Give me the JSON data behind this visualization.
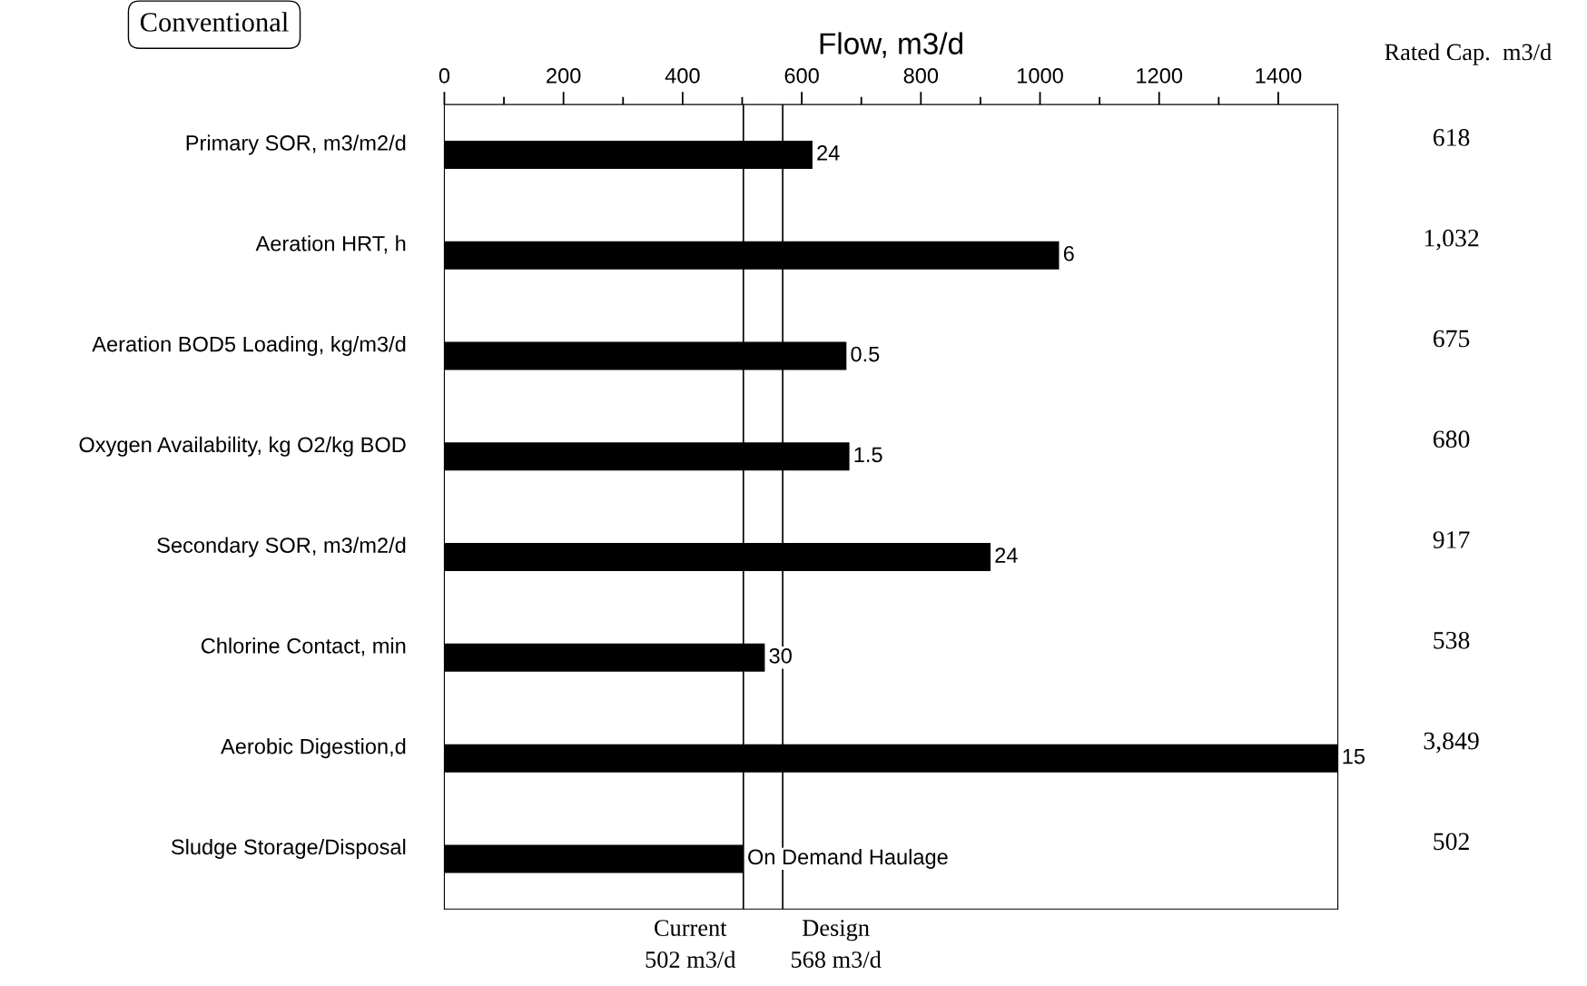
{
  "chart_data": {
    "type": "bar",
    "orientation": "horizontal",
    "title": "Flow, m3/d",
    "categories": [
      "Primary SOR, m3/m2/d",
      "Aeration HRT, h",
      "Aeration BOD5 Loading, kg/m3/d",
      "Oxygen Availability, kg O2/kg BOD",
      "Secondary SOR, m3/m2/d",
      "Chlorine Contact, min",
      "Aerobic Digestion,d",
      "Sludge Storage/Disposal"
    ],
    "values": [
      618,
      1032,
      675,
      680,
      917,
      538,
      1500,
      502
    ],
    "color": "#000000",
    "xlim": [
      0,
      1500
    ],
    "xticks": [
      0,
      {
        "value": 100,
        "label": null
      },
      200,
      {
        "value": 300,
        "label": null
      },
      400,
      {
        "value": 500,
        "label": null
      },
      600,
      {
        "value": 700,
        "label": null
      },
      800,
      {
        "value": 900,
        "label": null
      },
      1000,
      {
        "value": 1100,
        "label": null
      },
      1200,
      {
        "value": 1300,
        "label": null
      },
      1400
    ],
    "ref_lines": [
      {
        "axis": "x",
        "value": 502,
        "label": "Current\n502 m3/d",
        "color": "#000000"
      },
      {
        "axis": "x",
        "value": 568,
        "label": "Design\n568 m3/d",
        "color": "#000000"
      }
    ],
    "annotations": [
      "Conventional",
      "Rated Cap.  m3/d",
      "618",
      "1,032",
      "675",
      "680",
      "917",
      "538",
      "3,849",
      "502",
      {
        "text": "24",
        "x": 618,
        "y": "Primary SOR, m3/m2/d"
      },
      {
        "text": "6",
        "x": 1032,
        "y": "Aeration HRT, h"
      },
      {
        "text": "0.5",
        "x": 675,
        "y": "Aeration BOD5 Loading, kg/m3/d"
      },
      {
        "text": "1.5",
        "x": 680,
        "y": "Oxygen Availability, kg O2/kg BOD"
      },
      {
        "text": "24",
        "x": 917,
        "y": "Secondary SOR, m3/m2/d"
      },
      {
        "text": "30",
        "x": 538,
        "y": "Chlorine Contact, min"
      },
      {
        "text": "15",
        "x": 1500,
        "y": "Aerobic Digestion,d"
      },
      {
        "text": "On Demand Haulage",
        "x": 502,
        "y": "Sludge Storage/Disposal"
      }
    ],
    "grid": false,
    "legend": false
  }
}
